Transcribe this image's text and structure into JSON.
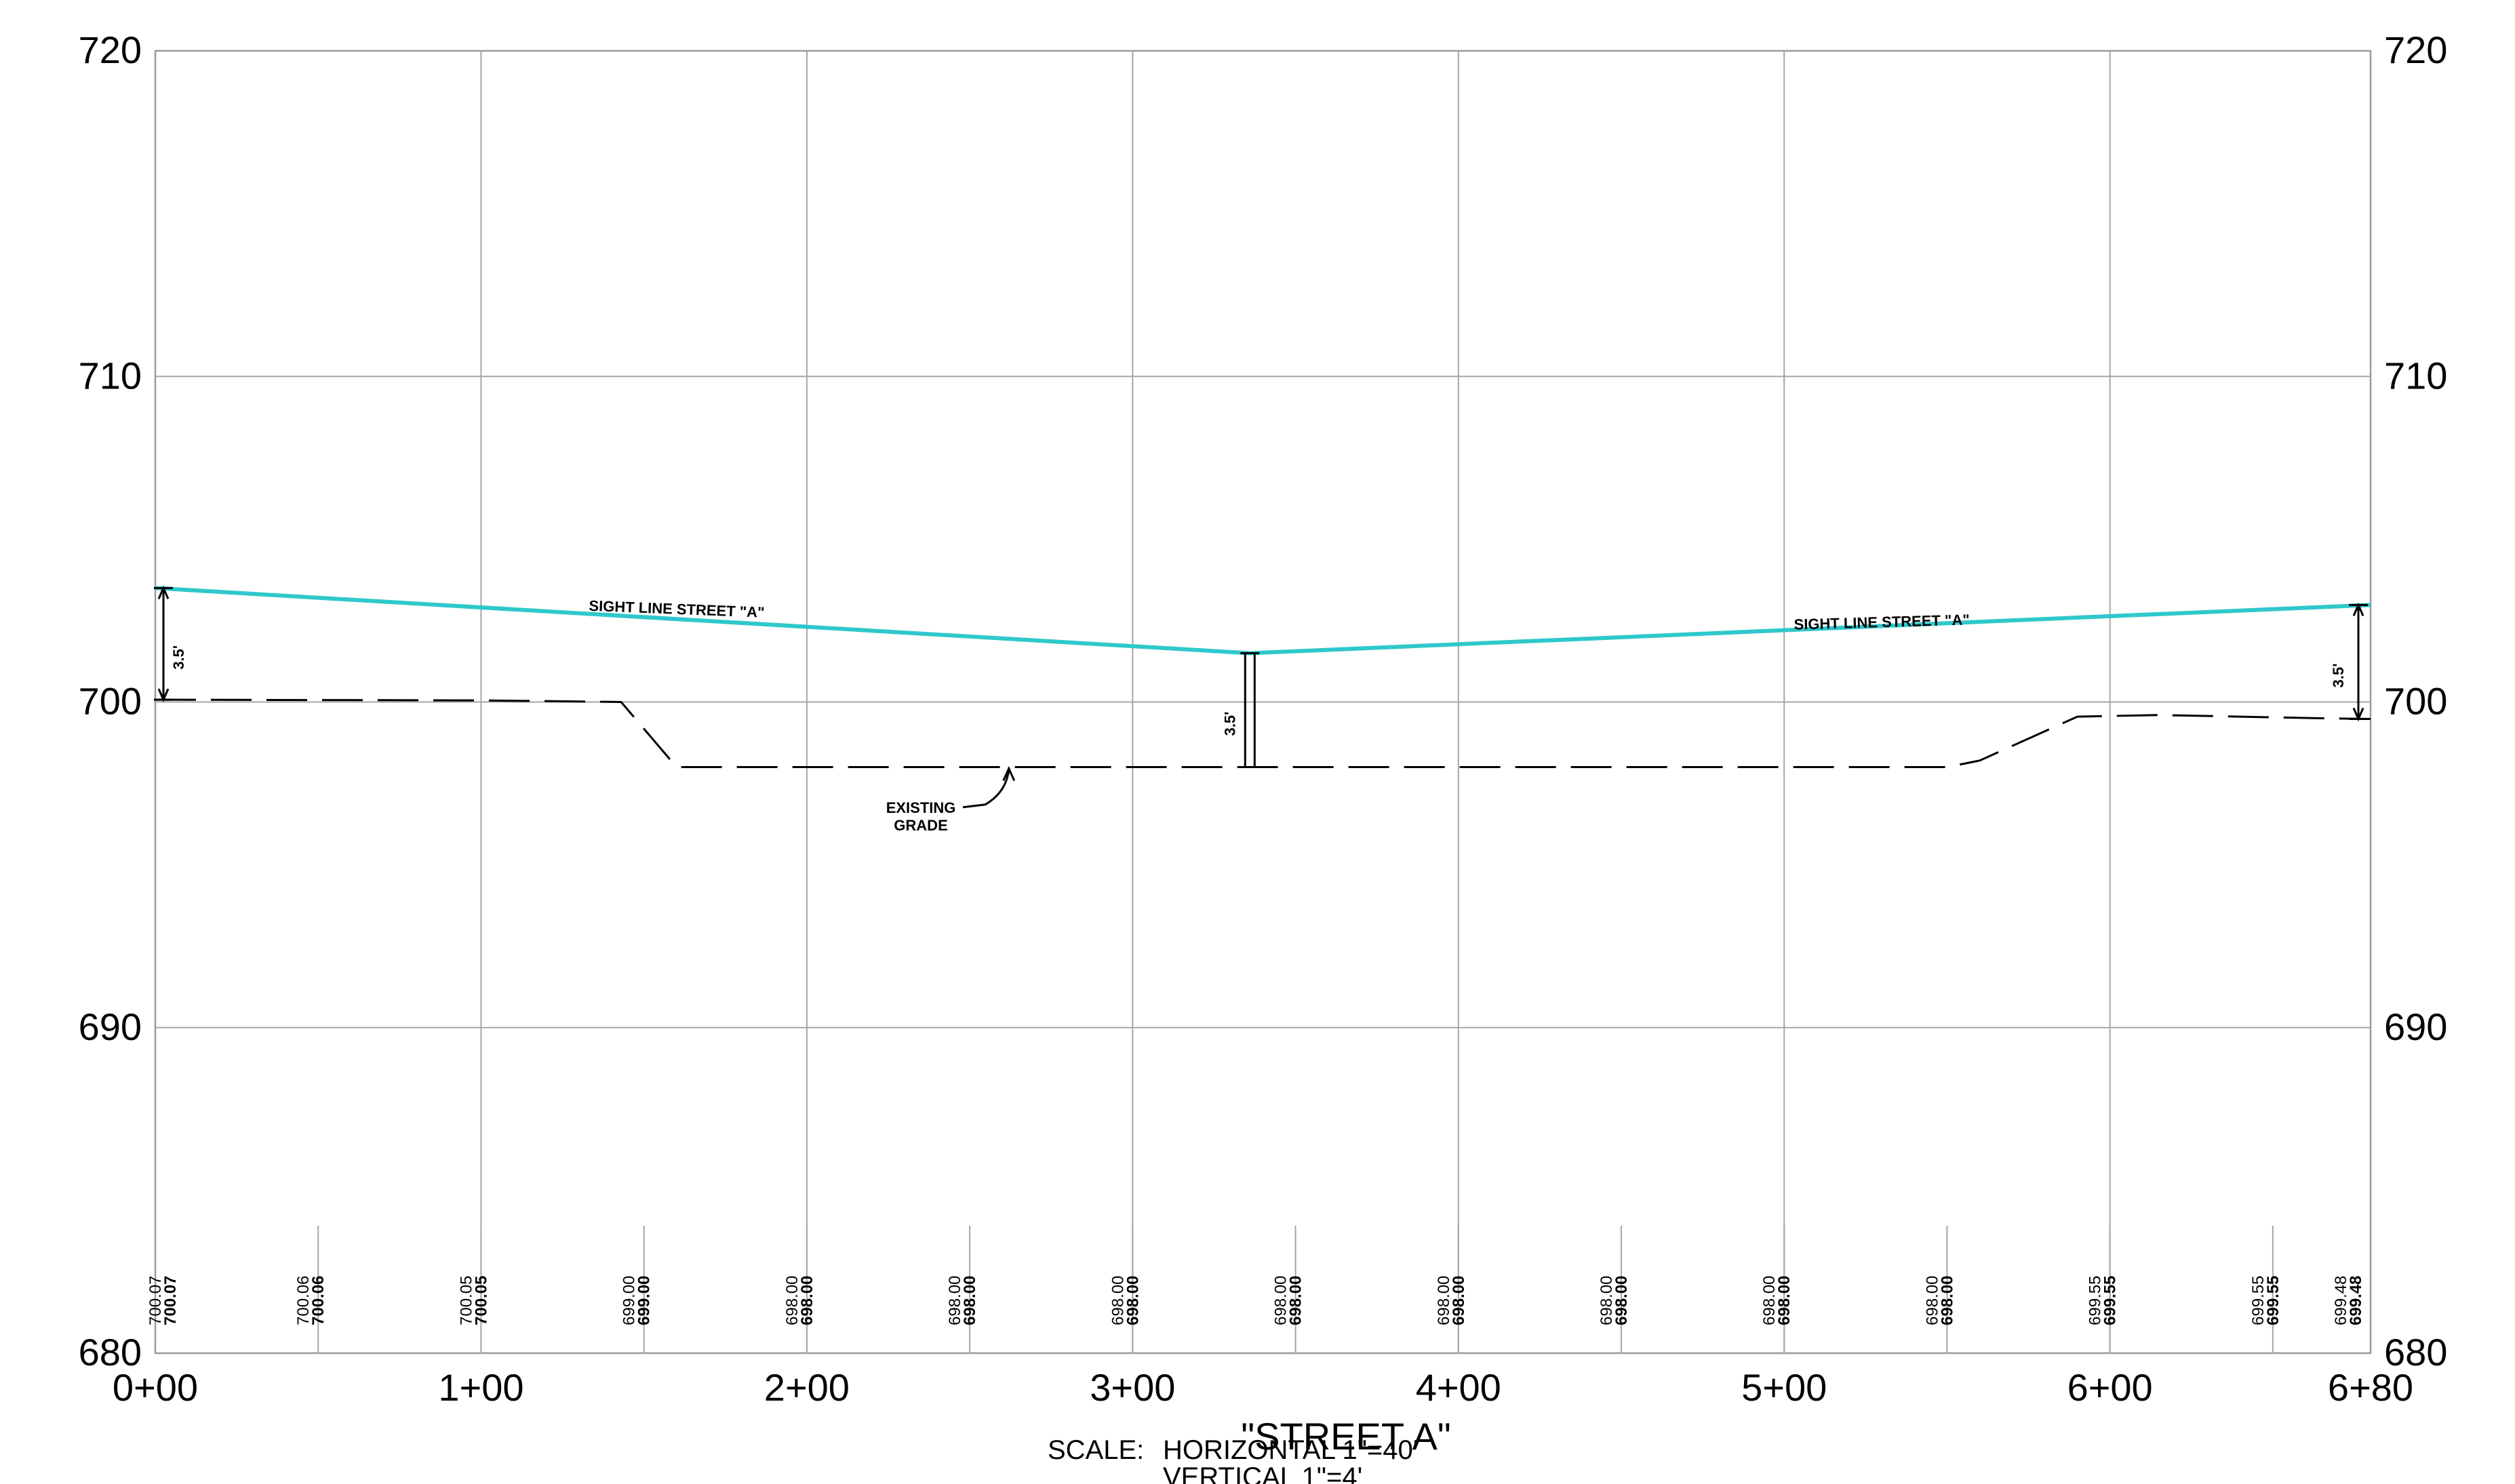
{
  "chart_data": {
    "type": "line",
    "title": "\"STREET A\"",
    "y_ticks": [
      "680",
      "690",
      "700",
      "710",
      "720"
    ],
    "x_ticks": [
      "0+00",
      "1+00",
      "2+00",
      "3+00",
      "4+00",
      "5+00",
      "6+00",
      "6+80"
    ],
    "xlim": [
      0,
      680
    ],
    "ylim": [
      680,
      720
    ],
    "grid": true,
    "series": [
      {
        "name": "SIGHT LINE STREET \"A\"",
        "color": "#2ec8cc",
        "style": "solid",
        "x": [
          0,
          336,
          680
        ],
        "y": [
          703.5,
          701.5,
          702.98
        ]
      },
      {
        "name": "EXISTING GRADE",
        "color": "#000000",
        "style": "dashed",
        "x": [
          0,
          100,
          143,
          160,
          336,
          550,
          560,
          590,
          615,
          640,
          665,
          680
        ],
        "y": [
          700.07,
          700.05,
          700.0,
          698.0,
          698.0,
          698.0,
          698.2,
          699.55,
          699.6,
          699.55,
          699.5,
          699.48
        ]
      }
    ],
    "elevation_columns": [
      {
        "station": 0,
        "existing": "700.07",
        "proposed": "700.07"
      },
      {
        "station": 50,
        "existing": "700.06",
        "proposed": "700.06"
      },
      {
        "station": 100,
        "existing": "700.05",
        "proposed": "700.05"
      },
      {
        "station": 150,
        "existing": "699.00",
        "proposed": "699.00"
      },
      {
        "station": 200,
        "existing": "698.00",
        "proposed": "698.00"
      },
      {
        "station": 250,
        "existing": "698.00",
        "proposed": "698.00"
      },
      {
        "station": 300,
        "existing": "698.00",
        "proposed": "698.00"
      },
      {
        "station": 350,
        "existing": "698.00",
        "proposed": "698.00"
      },
      {
        "station": 400,
        "existing": "698.00",
        "proposed": "698.00"
      },
      {
        "station": 450,
        "existing": "698.00",
        "proposed": "698.00"
      },
      {
        "station": 500,
        "existing": "698.00",
        "proposed": "698.00"
      },
      {
        "station": 550,
        "existing": "698.00",
        "proposed": "698.00"
      },
      {
        "station": 600,
        "existing": "699.55",
        "proposed": "699.55"
      },
      {
        "station": 650,
        "existing": "699.55",
        "proposed": "699.55"
      },
      {
        "station": 680,
        "existing": "699.48",
        "proposed": "699.48"
      }
    ],
    "annotations": [
      {
        "id": "sight-line-label-1",
        "text": "SIGHT LINE STREET \"A\"",
        "station": 160,
        "elevation": 702.7
      },
      {
        "id": "sight-line-label-2",
        "text": "SIGHT LINE STREET \"A\"",
        "station": 530,
        "elevation": 702.3
      },
      {
        "id": "existing-grade-label",
        "text": "EXISTING GRADE",
        "station": 235,
        "elevation": 696.6
      },
      {
        "id": "dim-left",
        "text": "3.5'",
        "station": 0,
        "from": 700.07,
        "to": 703.5
      },
      {
        "id": "dim-center",
        "text": "3.5'",
        "station": 336,
        "from": 698.0,
        "to": 701.5
      },
      {
        "id": "dim-right",
        "text": "3.5'",
        "station": 680,
        "from": 699.48,
        "to": 702.98
      }
    ]
  },
  "scale": {
    "label": "SCALE:",
    "horizontal": "HORIZONTAL 1\"=40'",
    "vertical": "VERTICAL 1\"=4'"
  }
}
